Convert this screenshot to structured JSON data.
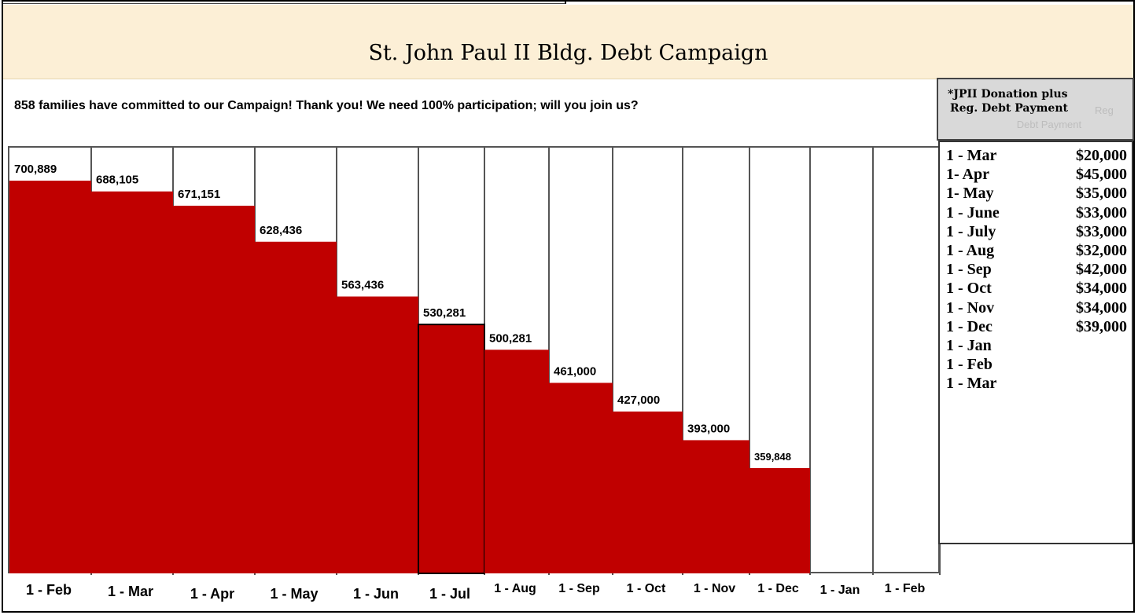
{
  "title": "St. John Paul II Bldg. Debt Campaign",
  "subtitle": "858 families have committed to our Campaign! Thank you! We need 100% participation; will you join us?",
  "colors": {
    "bar": "#c00000",
    "header_bg": "#fcefd6",
    "side_head_bg": "#d9d9d9"
  },
  "side_panel": {
    "title_line1": "*JPII Donation plus",
    "title_line2": "Reg. Debt Payment",
    "ghost_line1": "Reg",
    "ghost_line2": "Debt Payment",
    "rows": [
      {
        "month": "1 - Mar",
        "amount": "$20,000"
      },
      {
        "month": "1-  Apr",
        "amount": "$45,000"
      },
      {
        "month": "1-  May",
        "amount": "$35,000"
      },
      {
        "month": "1 - June",
        "amount": "$33,000"
      },
      {
        "month": "1 - July",
        "amount": "$33,000"
      },
      {
        "month": "1 - Aug",
        "amount": "$32,000"
      },
      {
        "month": "1 - Sep",
        "amount": "$42,000"
      },
      {
        "month": "1 - Oct",
        "amount": "$34,000"
      },
      {
        "month": "1 - Nov",
        "amount": "$34,000"
      },
      {
        "month": "1 - Dec",
        "amount": "$39,000"
      },
      {
        "month": "1 - Jan",
        "amount": ""
      },
      {
        "month": "1 - Feb",
        "amount": ""
      },
      {
        "month": "1 - Mar",
        "amount": ""
      }
    ]
  },
  "chart_data": {
    "type": "bar",
    "categories": [
      "1 - Feb",
      "1 - Mar",
      "1 - Apr",
      "1 - May",
      "1 - Jun",
      "1 - Jul",
      "1 - Aug",
      "1 - Sep",
      "1 - Oct",
      "1 - Nov",
      "1 - Dec",
      "1 - Jan",
      "1 - Feb"
    ],
    "values": [
      700889,
      688105,
      671151,
      628436,
      563436,
      530281,
      500281,
      461000,
      427000,
      393000,
      359848,
      null,
      null
    ],
    "value_labels": [
      "700,889",
      "688,105",
      "671,151",
      "628,436",
      "563,436",
      "530,281",
      "500,281",
      "461,000",
      "427,000",
      "393,000",
      "359,848",
      "",
      ""
    ],
    "ylim": [
      0,
      700889
    ],
    "title": "",
    "xlabel": "",
    "ylabel": "",
    "grid": false,
    "legend": "none"
  }
}
